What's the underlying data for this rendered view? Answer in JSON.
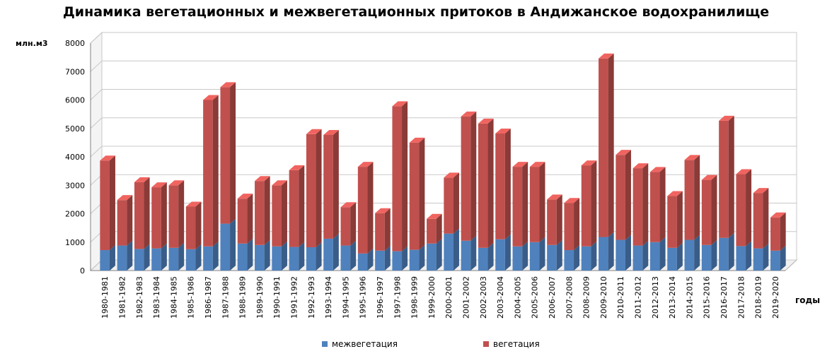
{
  "chart_data": {
    "type": "bar",
    "stacked": true,
    "title": "Динамика вегетационных и межвегетационных притоков в Андижанское водохранилище",
    "ylabel": "млн.м3",
    "xlabel": "годы",
    "ylim": [
      0,
      8000
    ],
    "yticks": [
      0,
      1000,
      2000,
      3000,
      4000,
      5000,
      6000,
      7000,
      8000
    ],
    "grid": true,
    "legend_position": "bottom",
    "categories": [
      "1980-1981",
      "1981-1982",
      "1982-1983",
      "1983-1984",
      "1984-1985",
      "1985-1986",
      "1986-1987",
      "1987-1988",
      "1988-1989",
      "1989-1990",
      "1990-1991",
      "1991-1992",
      "1992-1993",
      "1993-1994",
      "1994-1995",
      "1995-1996",
      "1996-1997",
      "1997-1998",
      "1998-1999",
      "1999-2000",
      "2000-2001",
      "2001-2002",
      "2002-2003",
      "2003-2004",
      "2004-2005",
      "2005-2006",
      "2006-2007",
      "2007-2008",
      "2008-2009",
      "2009-2010",
      "2010-2011",
      "2011-2012",
      "2012-2013",
      "2013-2014",
      "2014-2015",
      "2015-2016",
      "2016-2017",
      "2017-2018",
      "2018-2019",
      "2019-2020"
    ],
    "series": [
      {
        "name": "межвегетация",
        "color": "#4F81BD",
        "values": [
          720,
          880,
          760,
          780,
          800,
          750,
          850,
          1650,
          950,
          900,
          850,
          830,
          820,
          1120,
          880,
          600,
          700,
          680,
          730,
          950,
          1300,
          1050,
          800,
          1100,
          850,
          1000,
          900,
          720,
          850,
          1180,
          1080,
          880,
          1000,
          800,
          1080,
          900,
          1150,
          860,
          780,
          700
        ]
      },
      {
        "name": "вегетация",
        "color": "#C0504D",
        "values": [
          3150,
          1600,
          2350,
          2150,
          2200,
          1500,
          5150,
          4800,
          1580,
          2250,
          2150,
          2700,
          3980,
          3650,
          1350,
          3050,
          1320,
          5100,
          3770,
          870,
          1970,
          4370,
          4370,
          3720,
          2800,
          2650,
          1600,
          1660,
          2850,
          6280,
          2990,
          2720,
          2470,
          1820,
          2810,
          2290,
          4120,
          2530,
          1950,
          1170
        ]
      }
    ]
  }
}
